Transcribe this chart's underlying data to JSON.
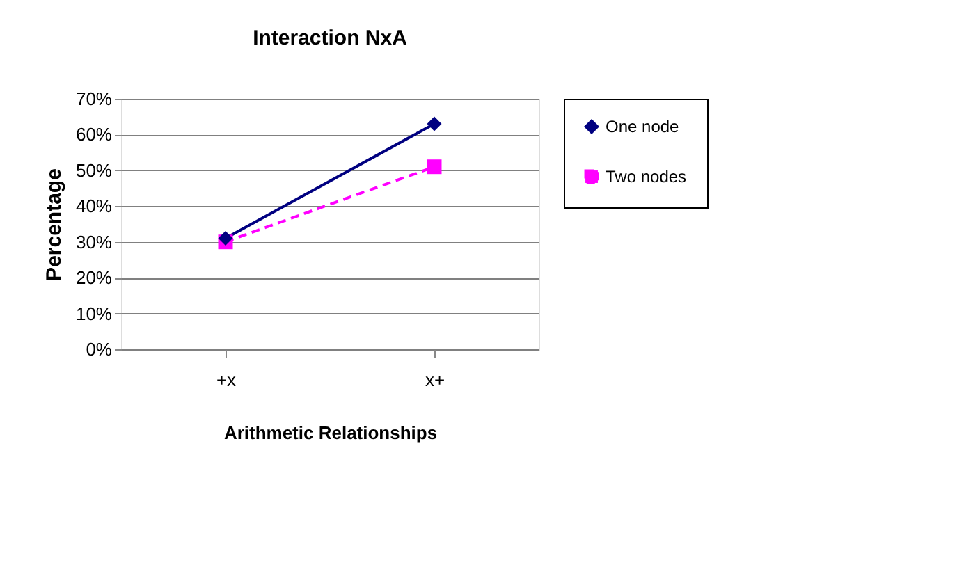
{
  "chart_data": {
    "type": "line",
    "title": "Interaction NxA",
    "xlabel": "Arithmetic Relationships",
    "ylabel": "Percentage",
    "categories": [
      "+x",
      "x+"
    ],
    "series": [
      {
        "name": "One node",
        "color": "#000080",
        "values": [
          31,
          63
        ],
        "marker": "diamond",
        "line_style": "solid"
      },
      {
        "name": "Two nodes",
        "color": "#ff00ff",
        "values": [
          30,
          51
        ],
        "marker": "square",
        "line_style": "dashed"
      }
    ],
    "ylim": [
      0,
      70
    ],
    "yticks": [
      {
        "value": 0,
        "label": "0%"
      },
      {
        "value": 10,
        "label": "10%"
      },
      {
        "value": 20,
        "label": "20%"
      },
      {
        "value": 30,
        "label": "30%"
      },
      {
        "value": 40,
        "label": "40%"
      },
      {
        "value": 50,
        "label": "50%"
      },
      {
        "value": 60,
        "label": "60%"
      },
      {
        "value": 70,
        "label": "70%"
      }
    ],
    "grid": "y",
    "legend": "right"
  }
}
